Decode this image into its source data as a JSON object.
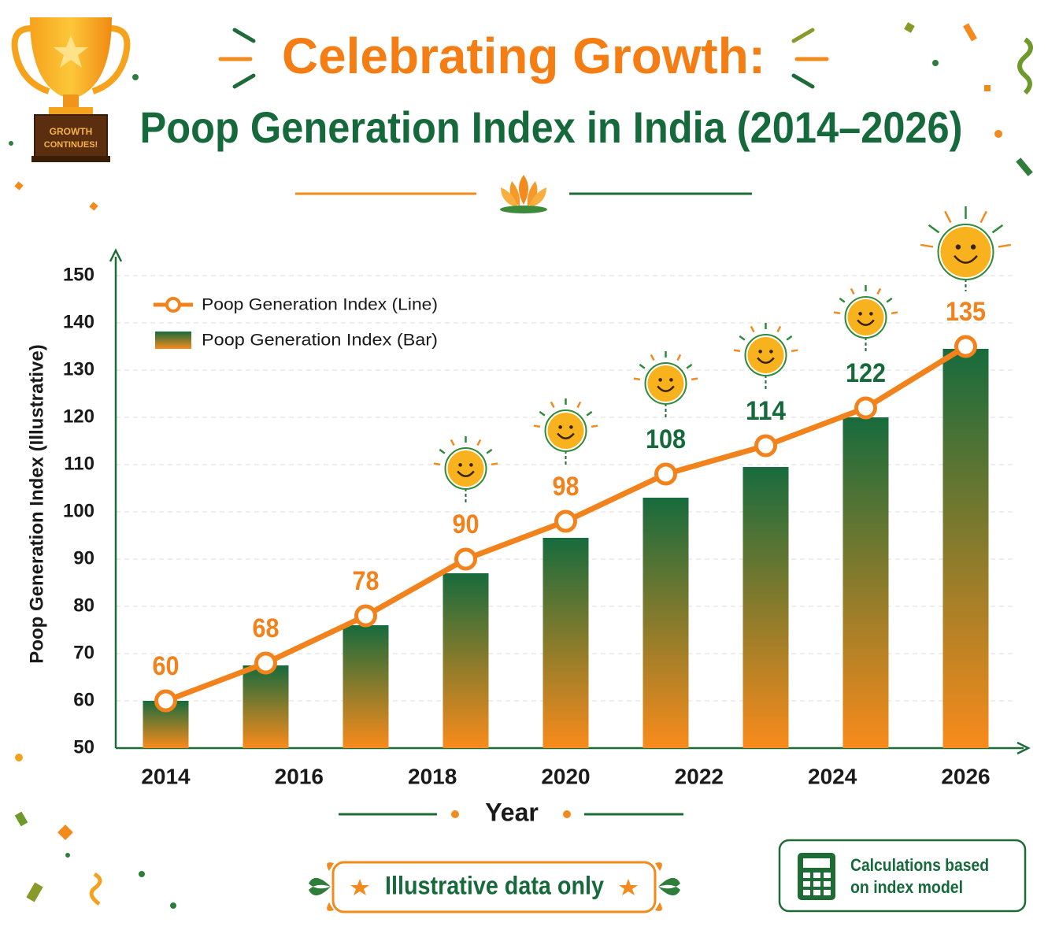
{
  "chart_data": {
    "type": "bar-line",
    "title": "Celebrating Growth:",
    "subtitle": "Poop Generation Index in India (2014–2026)",
    "badge": [
      "GROWTH",
      "CONTINUES!"
    ],
    "x_label": "Year",
    "y_label": "Poop Generation Index (Illustrative)",
    "x": [
      2014,
      2015.5,
      2017,
      2018.5,
      2020,
      2021.5,
      2023,
      2024.5,
      2026
    ],
    "xlim": [
      2013.25,
      2026.75
    ],
    "xticks": [
      2014,
      2016,
      2018,
      2020,
      2022,
      2024,
      2026
    ],
    "ylim": [
      50,
      150
    ],
    "yticks": [
      50,
      60,
      70,
      80,
      90,
      100,
      110,
      120,
      130,
      140,
      150
    ],
    "grid": true,
    "legend": "top-left",
    "series": [
      {
        "name": "Poop Generation Index (Line)",
        "type": "line",
        "color": "#f2831c",
        "values": [
          60,
          68,
          78,
          90,
          98,
          108,
          114,
          122,
          135
        ]
      },
      {
        "name": "Poop Generation Index (Bar)",
        "type": "bar",
        "gradient": [
          "#176b3d",
          "#f98b1b"
        ],
        "values": [
          60,
          67.5,
          76,
          87,
          94.5,
          103,
          109.5,
          120,
          134.5
        ]
      }
    ],
    "footer_note": "Illustrative data only",
    "method_note": [
      "Calculations based",
      "on index model"
    ]
  }
}
